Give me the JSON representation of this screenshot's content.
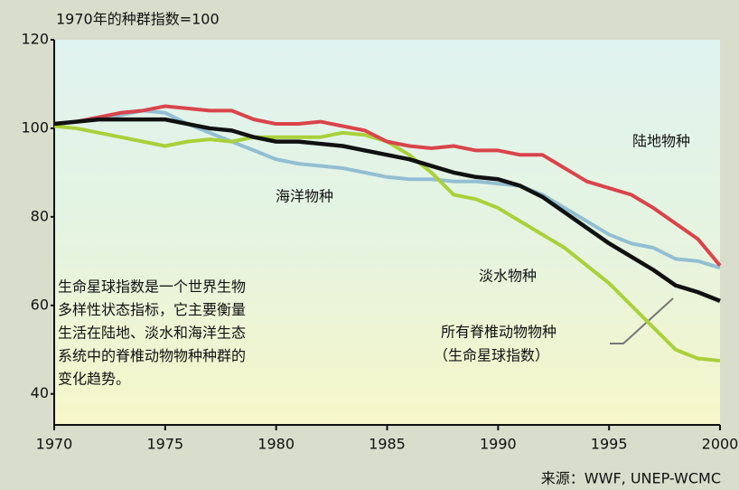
{
  "chart_data": {
    "type": "line",
    "title": "1970年的种群指数=100",
    "source": "来源：WWF, UNEP-WCMC",
    "note_lines": [
      "生命星球指数是一个世界生物",
      "多样性状态指标，它主要衡量",
      "生活在陆地、淡水和海洋生态",
      "系统中的脊椎动物物种种群的",
      "变化趋势。"
    ],
    "x": [
      1970,
      1971,
      1972,
      1973,
      1974,
      1975,
      1976,
      1977,
      1978,
      1979,
      1980,
      1981,
      1982,
      1983,
      1984,
      1985,
      1986,
      1987,
      1988,
      1989,
      1990,
      1991,
      1992,
      1993,
      1994,
      1995,
      1996,
      1997,
      1998,
      1999,
      2000
    ],
    "series": [
      {
        "name": "陆地物种",
        "color": "#d9444a",
        "values": [
          101,
          101.5,
          102.5,
          103.5,
          104,
          105,
          104.5,
          104,
          104,
          102,
          101,
          101,
          101.5,
          100.5,
          99.5,
          97,
          96,
          95.5,
          96,
          95,
          95,
          94,
          94,
          91,
          88,
          86.5,
          85,
          82,
          78.5,
          75,
          69
        ]
      },
      {
        "name": "海洋物种",
        "color": "#92bfd2",
        "values": [
          101,
          101.5,
          102,
          103,
          104,
          103.5,
          101,
          99,
          97,
          95,
          93,
          92,
          91.5,
          91,
          90,
          89,
          88.5,
          88.5,
          88,
          88,
          87.5,
          87,
          85,
          82,
          79,
          76,
          74,
          73,
          70.5,
          70,
          68.5
        ]
      },
      {
        "name": "淡水物种",
        "color": "#a9d13a",
        "values": [
          100.5,
          100,
          99,
          98,
          97,
          96,
          97,
          97.5,
          97,
          98,
          98,
          98,
          98,
          99,
          98.5,
          97,
          94,
          90,
          85,
          84,
          82,
          79,
          76,
          73,
          69,
          65,
          60,
          55,
          50,
          48,
          47.5
        ]
      },
      {
        "name": "所有脊椎动物物种",
        "subname": "（生命星球指数）",
        "color": "#111111",
        "values": [
          101,
          101.5,
          102,
          102,
          102,
          102,
          101,
          100,
          99.5,
          98,
          97,
          97,
          96.5,
          96,
          95,
          94,
          93,
          91.5,
          90,
          89,
          88.5,
          87,
          84.5,
          81,
          77.5,
          74,
          71,
          68,
          64.5,
          63,
          61
        ]
      }
    ],
    "xlim": [
      1970,
      2000
    ],
    "xticks": [
      1970,
      1975,
      1980,
      1985,
      1990,
      1995,
      2000
    ],
    "ylim": [
      33,
      120
    ],
    "yticks": [
      40,
      60,
      80,
      100,
      120
    ]
  }
}
